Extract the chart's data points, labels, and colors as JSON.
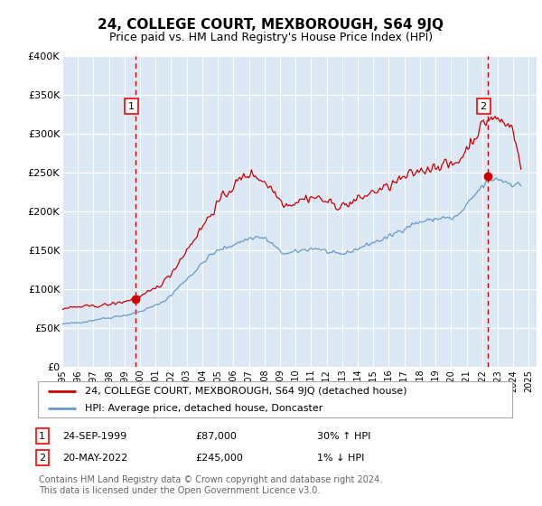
{
  "title": "24, COLLEGE COURT, MEXBOROUGH, S64 9JQ",
  "subtitle": "Price paid vs. HM Land Registry's House Price Index (HPI)",
  "legend_line1": "24, COLLEGE COURT, MEXBOROUGH, S64 9JQ (detached house)",
  "legend_line2": "HPI: Average price, detached house, Doncaster",
  "sale1_date": "24-SEP-1999",
  "sale1_price": "£87,000",
  "sale1_hpi": "30% ↑ HPI",
  "sale1_year": 1999.73,
  "sale1_value": 87000,
  "sale2_date": "20-MAY-2022",
  "sale2_price": "£245,000",
  "sale2_hpi": "1% ↓ HPI",
  "sale2_year": 2022.38,
  "sale2_value": 245000,
  "footnote1": "Contains HM Land Registry data © Crown copyright and database right 2024.",
  "footnote2": "This data is licensed under the Open Government Licence v3.0.",
  "ylim": [
    0,
    400000
  ],
  "yticks": [
    0,
    50000,
    100000,
    150000,
    200000,
    250000,
    300000,
    350000,
    400000
  ],
  "ytick_labels": [
    "£0",
    "£50K",
    "£100K",
    "£150K",
    "£200K",
    "£250K",
    "£300K",
    "£350K",
    "£400K"
  ],
  "bg_color": "#dce9f5",
  "line_color_red": "#cc0000",
  "line_color_blue": "#6699cc",
  "grid_color": "#ffffff",
  "hpi_base": [
    55000,
    56000,
    57000,
    58000,
    60000,
    62000,
    63000,
    65000,
    66000,
    68000,
    71000,
    75000,
    79000,
    84000,
    92000,
    103000,
    113000,
    122000,
    133000,
    143000,
    149000,
    153000,
    157000,
    161000,
    165000,
    167000,
    165000,
    158000,
    148000,
    145000,
    148000,
    150000,
    152000,
    152000,
    148000,
    145000,
    145000,
    148000,
    152000,
    156000,
    160000,
    163000,
    167000,
    173000,
    178000,
    183000,
    186000,
    188000,
    190000,
    192000,
    190000,
    195000,
    207000,
    220000,
    232000,
    240000,
    242000,
    238000,
    235000,
    233000
  ],
  "prop_base": [
    75000,
    76000,
    77000,
    77500,
    78000,
    79000,
    80000,
    82000,
    84000,
    87000,
    90000,
    95000,
    101000,
    109000,
    120000,
    135000,
    150000,
    165000,
    180000,
    195000,
    210000,
    222000,
    232000,
    242000,
    248000,
    245000,
    238000,
    228000,
    215000,
    208000,
    212000,
    216000,
    218000,
    217000,
    212000,
    208000,
    207000,
    210000,
    215000,
    220000,
    225000,
    228000,
    232000,
    238000,
    243000,
    248000,
    252000,
    255000,
    258000,
    261000,
    258000,
    265000,
    280000,
    295000,
    310000,
    320000,
    318000,
    312000,
    308000,
    255000
  ]
}
